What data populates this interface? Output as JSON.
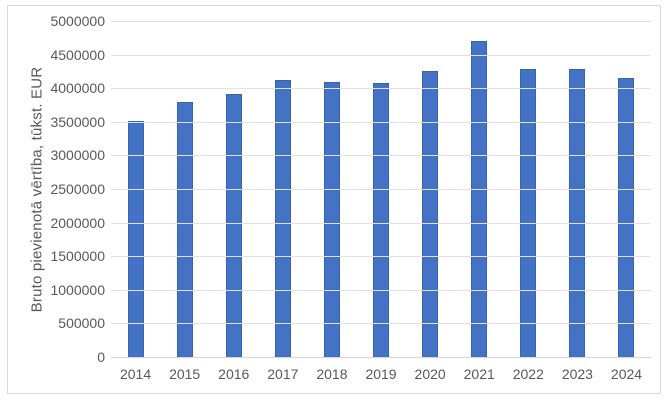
{
  "window": {
    "background": "#ffffff",
    "frame_border_color": "#d9d9d9"
  },
  "chart_data": {
    "type": "bar",
    "title": "",
    "xlabel": "",
    "ylabel": "Bruto pievienotā vērtība, tūkst. EUR",
    "categories": [
      "2014",
      "2015",
      "2016",
      "2017",
      "2018",
      "2019",
      "2020",
      "2021",
      "2022",
      "2023",
      "2024"
    ],
    "values": [
      3520000,
      3790000,
      3920000,
      4120000,
      4100000,
      4080000,
      4260000,
      4710000,
      4290000,
      4280000,
      4150000
    ],
    "ylim": [
      0,
      5000000
    ],
    "ytick_interval": 500000,
    "ytick_labels": [
      "5000000",
      "4500000",
      "4000000",
      "3500000",
      "3000000",
      "2500000",
      "2000000",
      "1500000",
      "1000000",
      "500000",
      "0"
    ],
    "grid": "horizontal",
    "legend": "none",
    "bar_color": "#4472c4",
    "bar_border_color": "#3465b1",
    "gridline_color": "#e2e2e2",
    "axis_line_color": "#d6d6d6",
    "text_color": "#595959"
  }
}
